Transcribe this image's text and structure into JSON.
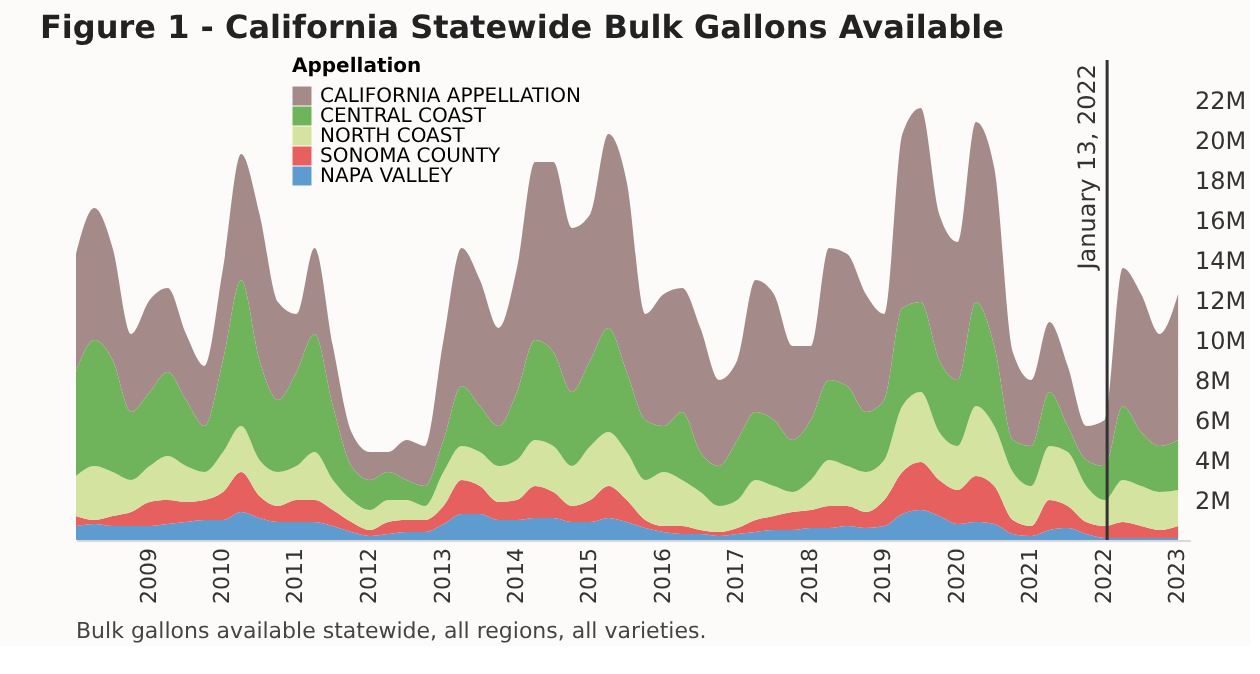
{
  "chart_data": {
    "type": "area",
    "stacked": true,
    "title": "Figure 1 - California Statewide Bulk Gallons Available",
    "legend_title": "Appellation",
    "annotations": [
      "Bulk gallons available statewide, all regions, all varieties."
    ],
    "x": [
      "2008-01",
      "2008-04",
      "2008-07",
      "2008-10",
      "2009-01",
      "2009-04",
      "2009-07",
      "2009-10",
      "2010-01",
      "2010-04",
      "2010-07",
      "2010-10",
      "2011-01",
      "2011-04",
      "2011-07",
      "2011-10",
      "2012-01",
      "2012-04",
      "2012-07",
      "2012-10",
      "2013-01",
      "2013-04",
      "2013-07",
      "2013-10",
      "2014-01",
      "2014-04",
      "2014-07",
      "2014-10",
      "2015-01",
      "2015-04",
      "2015-07",
      "2015-10",
      "2016-01",
      "2016-04",
      "2016-07",
      "2016-10",
      "2017-01",
      "2017-04",
      "2017-07",
      "2017-10",
      "2018-01",
      "2018-04",
      "2018-07",
      "2018-10",
      "2019-01",
      "2019-04",
      "2019-07",
      "2019-10",
      "2020-01",
      "2020-04",
      "2020-07",
      "2020-10",
      "2021-01",
      "2021-04",
      "2021-07",
      "2021-10",
      "2022-01",
      "2022-04",
      "2022-07",
      "2022-10",
      "2023-01"
    ],
    "series": [
      {
        "name": "NAPA VALLEY",
        "color": "#5e9cd0",
        "values": [
          0.7,
          0.8,
          0.7,
          0.7,
          0.7,
          0.8,
          0.9,
          1.0,
          1.0,
          1.4,
          1.1,
          0.9,
          0.9,
          0.9,
          0.7,
          0.4,
          0.2,
          0.3,
          0.4,
          0.4,
          0.8,
          1.3,
          1.3,
          1.0,
          1.0,
          1.1,
          1.1,
          0.9,
          0.9,
          1.1,
          0.9,
          0.6,
          0.4,
          0.3,
          0.3,
          0.2,
          0.3,
          0.4,
          0.5,
          0.5,
          0.6,
          0.6,
          0.7,
          0.6,
          0.7,
          1.3,
          1.5,
          1.2,
          0.8,
          0.9,
          0.8,
          0.3,
          0.2,
          0.5,
          0.6,
          0.3,
          0.1,
          0.1,
          0.1,
          0.1,
          0.1
        ]
      },
      {
        "name": "SONOMA COUNTY",
        "color": "#e5605f",
        "values": [
          0.5,
          0.2,
          0.5,
          0.7,
          1.2,
          1.2,
          1.0,
          1.0,
          1.4,
          2.0,
          1.1,
          0.8,
          1.1,
          1.1,
          0.8,
          0.5,
          0.3,
          0.6,
          0.6,
          0.6,
          0.9,
          1.7,
          1.4,
          0.9,
          1.0,
          1.6,
          1.3,
          0.8,
          1.1,
          1.6,
          1.1,
          0.4,
          0.3,
          0.4,
          0.2,
          0.2,
          0.3,
          0.6,
          0.7,
          0.9,
          0.9,
          1.1,
          1.0,
          0.8,
          1.3,
          2.1,
          2.4,
          1.8,
          1.7,
          2.3,
          1.9,
          0.7,
          0.5,
          1.5,
          1.1,
          0.6,
          0.6,
          0.8,
          0.6,
          0.4,
          0.6
        ]
      },
      {
        "name": "NORTH COAST",
        "color": "#d5e3a0",
        "values": [
          2.0,
          2.7,
          2.2,
          1.6,
          1.8,
          2.2,
          1.8,
          1.4,
          2.0,
          2.3,
          1.8,
          1.7,
          1.7,
          2.4,
          1.5,
          1.1,
          1.0,
          1.1,
          1.0,
          0.7,
          1.7,
          1.7,
          1.7,
          1.8,
          2.0,
          2.3,
          2.3,
          2.0,
          2.7,
          2.7,
          2.4,
          2.0,
          2.7,
          2.3,
          1.9,
          1.3,
          1.4,
          2.0,
          1.5,
          1.0,
          1.5,
          2.3,
          2.0,
          2.0,
          2.0,
          3.3,
          3.5,
          2.4,
          2.2,
          3.5,
          3.0,
          2.4,
          2.0,
          2.7,
          2.7,
          1.8,
          1.3,
          2.1,
          2.0,
          1.9,
          1.8
        ]
      },
      {
        "name": "CENTRAL COAST",
        "color": "#6fb45a",
        "values": [
          5.2,
          6.3,
          5.6,
          3.4,
          3.7,
          4.2,
          3.3,
          2.3,
          4.6,
          7.3,
          5.0,
          3.6,
          4.7,
          5.9,
          3.7,
          1.7,
          1.5,
          1.4,
          1.0,
          1.0,
          1.6,
          3.0,
          2.3,
          2.0,
          3.4,
          5.0,
          4.7,
          3.7,
          4.3,
          5.2,
          4.0,
          3.0,
          2.3,
          3.4,
          2.0,
          2.0,
          3.0,
          3.4,
          3.3,
          2.6,
          3.0,
          4.0,
          4.0,
          3.0,
          3.0,
          4.9,
          4.5,
          3.6,
          3.3,
          5.2,
          4.0,
          1.6,
          2.0,
          2.7,
          1.3,
          1.3,
          1.7,
          3.7,
          2.7,
          2.3,
          2.5
        ]
      },
      {
        "name": "CALIFORNIA APPELLATION",
        "color": "#a58a8a",
        "values": [
          5.9,
          6.6,
          5.6,
          3.9,
          4.6,
          4.2,
          3.3,
          3.0,
          4.6,
          6.3,
          7.3,
          4.9,
          2.9,
          4.3,
          3.0,
          1.7,
          1.4,
          1.0,
          2.0,
          2.0,
          5.0,
          6.9,
          6.3,
          4.9,
          6.2,
          8.9,
          9.5,
          8.2,
          7.3,
          9.7,
          9.5,
          5.3,
          6.6,
          6.2,
          6.2,
          4.3,
          4.0,
          6.6,
          6.3,
          4.7,
          3.7,
          6.6,
          6.6,
          5.9,
          4.3,
          8.7,
          9.7,
          7.3,
          6.9,
          9.0,
          8.9,
          4.4,
          3.3,
          3.5,
          3.0,
          1.7,
          2.3,
          6.9,
          6.9,
          5.6,
          7.3
        ]
      }
    ],
    "xlim": [
      "2008-01",
      "2023-03"
    ],
    "xticks": [
      "2009",
      "2010",
      "2011",
      "2012",
      "2013",
      "2014",
      "2015",
      "2016",
      "2017",
      "2018",
      "2019",
      "2020",
      "2021",
      "2022",
      "2023"
    ],
    "ylim": [
      0,
      24
    ],
    "yticks": [
      {
        "value": 2,
        "label": "2M"
      },
      {
        "value": 4,
        "label": "4M"
      },
      {
        "value": 6,
        "label": "6M"
      },
      {
        "value": 8,
        "label": "8M"
      },
      {
        "value": 10,
        "label": "10M"
      },
      {
        "value": 12,
        "label": "12M"
      },
      {
        "value": 14,
        "label": "14M"
      },
      {
        "value": 16,
        "label": "16M"
      },
      {
        "value": 18,
        "label": "18M"
      },
      {
        "value": 20,
        "label": "20M"
      },
      {
        "value": 22,
        "label": "22M"
      }
    ],
    "ref_lines": [
      {
        "axis": "x",
        "value": "2022-01-13",
        "label": "January 13, 2022",
        "color": "#333333"
      }
    ],
    "grid": false,
    "legend": "top left"
  }
}
